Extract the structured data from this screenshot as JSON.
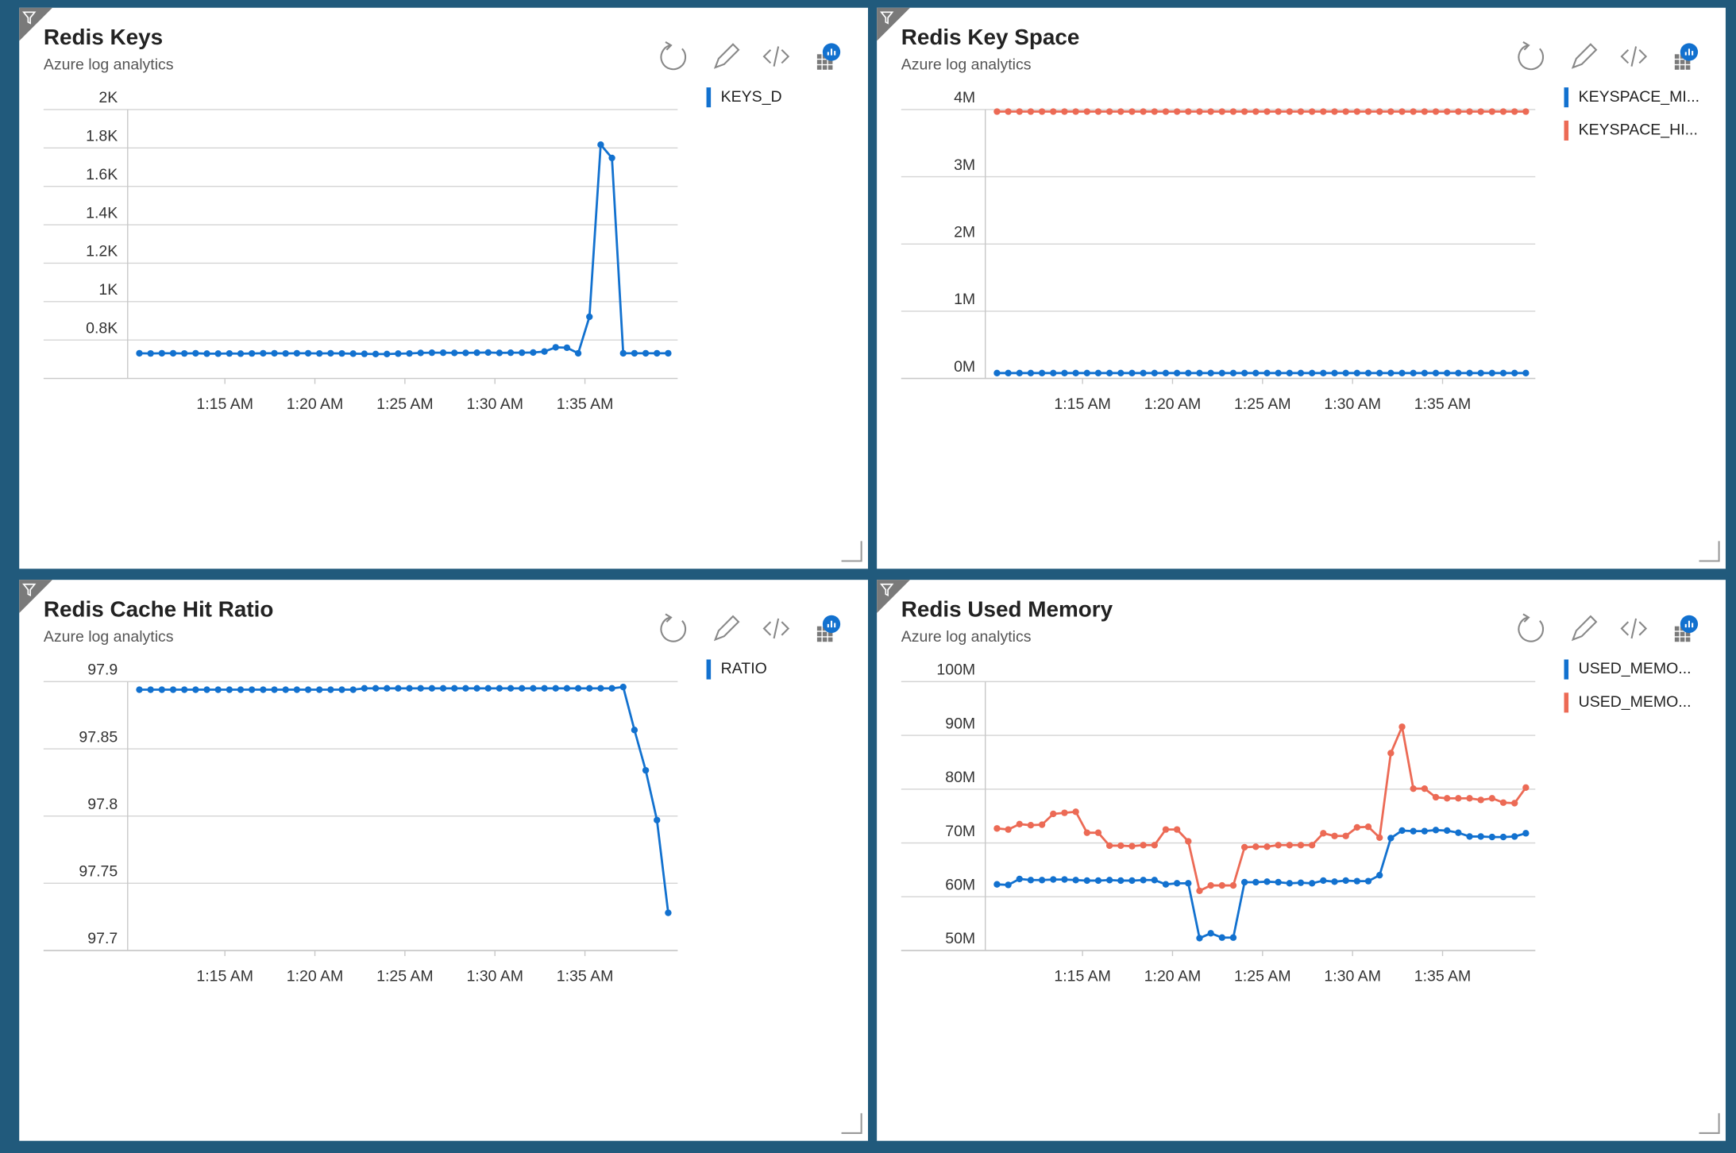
{
  "chart_data": [
    {
      "type": "line",
      "title": "Redis Keys",
      "subtitle": "Azure log analytics",
      "legend": "right",
      "grid": true,
      "x": [
        70.25,
        70.875,
        71.5,
        72.125,
        72.75,
        73.375,
        74,
        74.625,
        75.25,
        75.875,
        76.5,
        77.125,
        77.75,
        78.375,
        79,
        79.625,
        80.25,
        80.875,
        81.5,
        82.125,
        82.75,
        83.375,
        84,
        84.625,
        85.25,
        85.875,
        86.5,
        87.125,
        87.75,
        88.375,
        89,
        89.625,
        90.25,
        90.875,
        91.5,
        92.125,
        92.75,
        93.375,
        94,
        94.625,
        95.25,
        95.875,
        96.5,
        97.125,
        97.75,
        98.375,
        99,
        99.625
      ],
      "xlim": [
        69.6,
        100.15
      ],
      "xticks": [
        {
          "value": 75,
          "label": "1:15 AM"
        },
        {
          "value": 80,
          "label": "1:20 AM"
        },
        {
          "value": 85,
          "label": "1:25 AM"
        },
        {
          "value": 90,
          "label": "1:30 AM"
        },
        {
          "value": 95,
          "label": "1:35 AM"
        }
      ],
      "ylim": [
        600,
        2000
      ],
      "yticks": [
        {
          "value": 800,
          "label": "0.8K"
        },
        {
          "value": 1000,
          "label": "1K"
        },
        {
          "value": 1200,
          "label": "1.2K"
        },
        {
          "value": 1400,
          "label": "1.4K"
        },
        {
          "value": 1600,
          "label": "1.6K"
        },
        {
          "value": 1800,
          "label": "1.8K"
        },
        {
          "value": 2000,
          "label": "2K"
        }
      ],
      "series": [
        {
          "name": "KEYS_D",
          "color": "#1271cf",
          "values": [
            731,
            730,
            731,
            731,
            730,
            731,
            729,
            729,
            730,
            729,
            730,
            731,
            731,
            730,
            731,
            731,
            730,
            731,
            730,
            729,
            728,
            727,
            727,
            729,
            730,
            733,
            734,
            734,
            733,
            733,
            734,
            735,
            733,
            734,
            734,
            735,
            740,
            762,
            760,
            731,
            921,
            1817,
            1748,
            731,
            731,
            731,
            731,
            731
          ]
        }
      ]
    },
    {
      "type": "line",
      "title": "Redis Key Space",
      "subtitle": "Azure log analytics",
      "legend": "right",
      "grid": true,
      "x": [
        70.25,
        70.875,
        71.5,
        72.125,
        72.75,
        73.375,
        74,
        74.625,
        75.25,
        75.875,
        76.5,
        77.125,
        77.75,
        78.375,
        79,
        79.625,
        80.25,
        80.875,
        81.5,
        82.125,
        82.75,
        83.375,
        84,
        84.625,
        85.25,
        85.875,
        86.5,
        87.125,
        87.75,
        88.375,
        89,
        89.625,
        90.25,
        90.875,
        91.5,
        92.125,
        92.75,
        93.375,
        94,
        94.625,
        95.25,
        95.875,
        96.5,
        97.125,
        97.75,
        98.375,
        99,
        99.625
      ],
      "xlim": [
        69.6,
        100.15
      ],
      "xticks": [
        {
          "value": 75,
          "label": "1:15 AM"
        },
        {
          "value": 80,
          "label": "1:20 AM"
        },
        {
          "value": 85,
          "label": "1:25 AM"
        },
        {
          "value": 90,
          "label": "1:30 AM"
        },
        {
          "value": 95,
          "label": "1:35 AM"
        }
      ],
      "ylim": [
        0,
        4000000
      ],
      "yticks": [
        {
          "value": 0,
          "label": "0M"
        },
        {
          "value": 1000000,
          "label": "1M"
        },
        {
          "value": 2000000,
          "label": "2M"
        },
        {
          "value": 3000000,
          "label": "3M"
        },
        {
          "value": 4000000,
          "label": "4M"
        }
      ],
      "series": [
        {
          "name": "KEYSPACE_MI...",
          "color": "#1271cf",
          "values": [
            80000,
            80000,
            80000,
            80000,
            80000,
            80000,
            80000,
            80000,
            80000,
            80000,
            80000,
            80000,
            80000,
            80000,
            80000,
            80000,
            80000,
            80000,
            80000,
            80000,
            80000,
            80000,
            80000,
            80000,
            80000,
            80000,
            80000,
            80000,
            80000,
            80000,
            80000,
            80000,
            80000,
            80000,
            80000,
            80000,
            80000,
            80000,
            80000,
            80000,
            80000,
            80000,
            80000,
            80000,
            80000,
            80000,
            80000,
            80000
          ]
        },
        {
          "name": "KEYSPACE_HI...",
          "color": "#ec6a55",
          "values": [
            3970000,
            3970000,
            3970000,
            3970000,
            3970000,
            3970000,
            3970000,
            3970000,
            3970000,
            3970000,
            3970000,
            3970000,
            3970000,
            3970000,
            3970000,
            3970000,
            3970000,
            3970000,
            3970000,
            3970000,
            3970000,
            3970000,
            3970000,
            3970000,
            3970000,
            3970000,
            3970000,
            3970000,
            3970000,
            3970000,
            3970000,
            3970000,
            3970000,
            3970000,
            3970000,
            3970000,
            3970000,
            3970000,
            3970000,
            3970000,
            3970000,
            3970000,
            3970000,
            3970000,
            3970000,
            3970000,
            3970000,
            3970000
          ]
        }
      ]
    },
    {
      "type": "line",
      "title": "Redis Cache Hit Ratio",
      "subtitle": "Azure log analytics",
      "legend": "right",
      "grid": true,
      "x": [
        70.25,
        70.875,
        71.5,
        72.125,
        72.75,
        73.375,
        74,
        74.625,
        75.25,
        75.875,
        76.5,
        77.125,
        77.75,
        78.375,
        79,
        79.625,
        80.25,
        80.875,
        81.5,
        82.125,
        82.75,
        83.375,
        84,
        84.625,
        85.25,
        85.875,
        86.5,
        87.125,
        87.75,
        88.375,
        89,
        89.625,
        90.25,
        90.875,
        91.5,
        92.125,
        92.75,
        93.375,
        94,
        94.625,
        95.25,
        95.875,
        96.5,
        97.125,
        97.75,
        98.375,
        99,
        99.625
      ],
      "xlim": [
        69.6,
        100.15
      ],
      "xticks": [
        {
          "value": 75,
          "label": "1:15 AM"
        },
        {
          "value": 80,
          "label": "1:20 AM"
        },
        {
          "value": 85,
          "label": "1:25 AM"
        },
        {
          "value": 90,
          "label": "1:30 AM"
        },
        {
          "value": 95,
          "label": "1:35 AM"
        }
      ],
      "ylim": [
        97.7,
        97.9
      ],
      "yticks": [
        97.7,
        97.75,
        97.8,
        97.85,
        97.9
      ],
      "series": [
        {
          "name": "RATIO",
          "color": "#1271cf",
          "values": [
            97.894,
            97.894,
            97.894,
            97.894,
            97.894,
            97.894,
            97.894,
            97.894,
            97.894,
            97.894,
            97.894,
            97.894,
            97.894,
            97.894,
            97.894,
            97.894,
            97.894,
            97.894,
            97.894,
            97.894,
            97.895,
            97.895,
            97.895,
            97.895,
            97.895,
            97.895,
            97.895,
            97.895,
            97.895,
            97.895,
            97.895,
            97.895,
            97.895,
            97.895,
            97.895,
            97.895,
            97.895,
            97.895,
            97.895,
            97.895,
            97.895,
            97.895,
            97.895,
            97.896,
            97.864,
            97.834,
            97.797,
            97.728
          ]
        }
      ]
    },
    {
      "type": "line",
      "title": "Redis Used Memory",
      "subtitle": "Azure log analytics",
      "legend": "right",
      "grid": true,
      "x": [
        70.25,
        70.875,
        71.5,
        72.125,
        72.75,
        73.375,
        74,
        74.625,
        75.25,
        75.875,
        76.5,
        77.125,
        77.75,
        78.375,
        79,
        79.625,
        80.25,
        80.875,
        81.5,
        82.125,
        82.75,
        83.375,
        84,
        84.625,
        85.25,
        85.875,
        86.5,
        87.125,
        87.75,
        88.375,
        89,
        89.625,
        90.25,
        90.875,
        91.5,
        92.125,
        92.75,
        93.375,
        94,
        94.625,
        95.25,
        95.875,
        96.5,
        97.125,
        97.75,
        98.375,
        99,
        99.625
      ],
      "xlim": [
        69.6,
        100.15
      ],
      "xticks": [
        {
          "value": 75,
          "label": "1:15 AM"
        },
        {
          "value": 80,
          "label": "1:20 AM"
        },
        {
          "value": 85,
          "label": "1:25 AM"
        },
        {
          "value": 90,
          "label": "1:30 AM"
        },
        {
          "value": 95,
          "label": "1:35 AM"
        }
      ],
      "ylim": [
        50000000,
        100000000
      ],
      "yticks": [
        {
          "value": 50000000,
          "label": "50M"
        },
        {
          "value": 60000000,
          "label": "60M"
        },
        {
          "value": 70000000,
          "label": "70M"
        },
        {
          "value": 80000000,
          "label": "80M"
        },
        {
          "value": 90000000,
          "label": "90M"
        },
        {
          "value": 100000000,
          "label": "100M"
        }
      ],
      "series": [
        {
          "name": "USED_MEMO...",
          "color": "#1271cf",
          "values": [
            62300000,
            62200000,
            63300000,
            63100000,
            63100000,
            63200000,
            63200000,
            63100000,
            63000000,
            63000000,
            63100000,
            63000000,
            63000000,
            63100000,
            63100000,
            62300000,
            62500000,
            62500000,
            52300000,
            53200000,
            52400000,
            52400000,
            62700000,
            62700000,
            62800000,
            62700000,
            62500000,
            62600000,
            62500000,
            63000000,
            62800000,
            63000000,
            62900000,
            62900000,
            64000000,
            70900000,
            72300000,
            72200000,
            72200000,
            72400000,
            72300000,
            71900000,
            71200000,
            71200000,
            71100000,
            71100000,
            71200000,
            71800000
          ]
        },
        {
          "name": "USED_MEMO...",
          "color": "#ec6a55",
          "values": [
            72700000,
            72500000,
            73500000,
            73300000,
            73400000,
            75400000,
            75600000,
            75800000,
            71900000,
            71900000,
            69500000,
            69500000,
            69400000,
            69600000,
            69600000,
            72500000,
            72500000,
            70300000,
            61100000,
            62100000,
            62100000,
            62100000,
            69200000,
            69300000,
            69300000,
            69600000,
            69600000,
            69600000,
            69600000,
            71800000,
            71300000,
            71300000,
            72900000,
            73000000,
            71000000,
            86700000,
            91600000,
            80100000,
            80100000,
            78500000,
            78300000,
            78300000,
            78300000,
            78000000,
            78300000,
            77500000,
            77400000,
            80300000
          ]
        }
      ]
    }
  ]
}
